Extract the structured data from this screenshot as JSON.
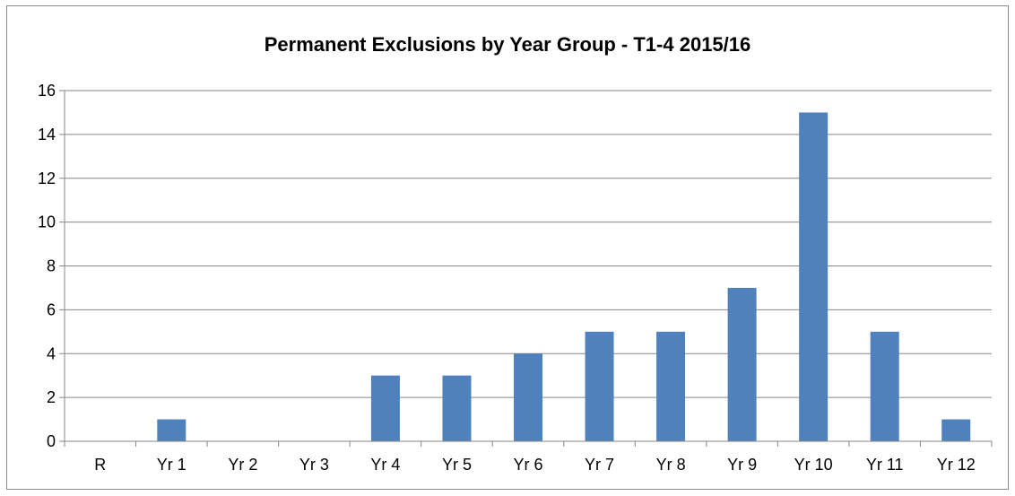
{
  "chart_data": {
    "type": "bar",
    "title": "Permanent Exclusions by Year Group - T1-4 2015/16",
    "xlabel": "",
    "ylabel": "",
    "categories": [
      "R",
      "Yr 1",
      "Yr 2",
      "Yr 3",
      "Yr 4",
      "Yr 5",
      "Yr 6",
      "Yr 7",
      "Yr 8",
      "Yr 9",
      "Yr 10",
      "Yr 11",
      "Yr 12"
    ],
    "values": [
      0,
      1,
      0,
      0,
      3,
      3,
      4,
      5,
      5,
      7,
      15,
      5,
      1
    ],
    "ylim": [
      0,
      16
    ],
    "yticks": [
      "0",
      "2",
      "4",
      "6",
      "8",
      "10",
      "12",
      "14",
      "16"
    ],
    "grid": true,
    "legend": "none",
    "bar_color": "#4f81bd"
  }
}
